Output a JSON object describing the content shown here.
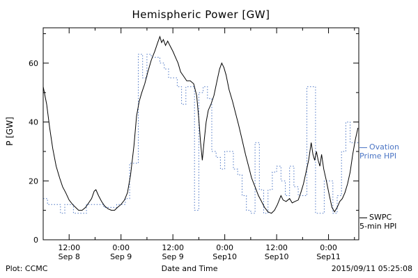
{
  "chart_data": {
    "type": "line",
    "title": "Hemispheric Power [GW]",
    "xlabel": "Date and Time",
    "ylabel": "P [GW]",
    "xlim": [
      6,
      79
    ],
    "ylim": [
      0,
      72
    ],
    "grid": false,
    "legend_position": "right-outside",
    "x_unit": "hours since Sep 8 00:00",
    "xticks": [
      {
        "x": 12,
        "time": "12:00",
        "date": "Sep 8"
      },
      {
        "x": 24,
        "time": "0:00",
        "date": "Sep 9"
      },
      {
        "x": 36,
        "time": "12:00",
        "date": "Sep 9"
      },
      {
        "x": 48,
        "time": "0:00",
        "date": "Sep10"
      },
      {
        "x": 60,
        "time": "12:00",
        "date": "Sep10"
      },
      {
        "x": 72,
        "time": "0:00",
        "date": "Sep11"
      }
    ],
    "x_minor_step": 6,
    "yticks": [
      0,
      20,
      40,
      60
    ],
    "y_minor_step": 10,
    "series": [
      {
        "name": "Ovation Prime HPI",
        "style": "step",
        "color": "#4a74c4",
        "dash": "1.5 2.5",
        "points": [
          [
            6,
            14
          ],
          [
            7,
            12
          ],
          [
            8,
            12
          ],
          [
            9,
            12
          ],
          [
            10,
            9
          ],
          [
            11,
            12
          ],
          [
            12,
            12
          ],
          [
            13,
            9
          ],
          [
            14,
            9
          ],
          [
            15,
            9
          ],
          [
            16,
            12
          ],
          [
            17,
            12
          ],
          [
            18,
            12
          ],
          [
            19,
            12
          ],
          [
            20,
            11
          ],
          [
            21,
            11
          ],
          [
            22,
            11
          ],
          [
            23,
            12
          ],
          [
            24,
            12
          ],
          [
            25,
            14
          ],
          [
            26,
            26
          ],
          [
            27,
            26
          ],
          [
            28,
            63
          ],
          [
            29,
            55
          ],
          [
            30,
            63
          ],
          [
            31,
            62
          ],
          [
            32,
            62
          ],
          [
            33,
            60
          ],
          [
            34,
            58
          ],
          [
            35,
            55
          ],
          [
            36,
            55
          ],
          [
            37,
            52
          ],
          [
            38,
            46
          ],
          [
            39,
            52
          ],
          [
            40,
            52
          ],
          [
            41,
            10
          ],
          [
            42,
            50
          ],
          [
            43,
            52
          ],
          [
            44,
            48
          ],
          [
            45,
            30
          ],
          [
            46,
            28
          ],
          [
            47,
            24
          ],
          [
            48,
            30
          ],
          [
            49,
            30
          ],
          [
            50,
            24
          ],
          [
            51,
            22
          ],
          [
            52,
            15
          ],
          [
            53,
            10
          ],
          [
            54,
            9
          ],
          [
            55,
            33
          ],
          [
            56,
            17
          ],
          [
            57,
            9
          ],
          [
            58,
            17
          ],
          [
            59,
            23
          ],
          [
            60,
            25
          ],
          [
            61,
            20
          ],
          [
            62,
            15
          ],
          [
            63,
            25
          ],
          [
            64,
            18
          ],
          [
            65,
            15
          ],
          [
            66,
            15
          ],
          [
            67,
            52
          ],
          [
            68,
            52
          ],
          [
            69,
            9
          ],
          [
            70,
            9
          ],
          [
            71,
            20
          ],
          [
            72,
            20
          ],
          [
            73,
            9
          ],
          [
            74,
            15
          ],
          [
            75,
            30
          ],
          [
            76,
            40
          ],
          [
            77,
            33
          ],
          [
            78,
            33
          ]
        ]
      },
      {
        "name": "SWPC 5-min HPI",
        "style": "line",
        "color": "#000000",
        "dash": "",
        "points": [
          [
            6,
            52
          ],
          [
            6.8,
            46
          ],
          [
            7.5,
            38
          ],
          [
            8.2,
            31
          ],
          [
            9,
            25
          ],
          [
            9.8,
            21
          ],
          [
            10.5,
            18
          ],
          [
            11.2,
            16
          ],
          [
            12,
            13.5
          ],
          [
            12.8,
            12
          ],
          [
            13.5,
            11
          ],
          [
            14.2,
            10
          ],
          [
            15,
            10
          ],
          [
            15.8,
            11
          ],
          [
            16.5,
            12.5
          ],
          [
            17.2,
            14
          ],
          [
            17.8,
            16.5
          ],
          [
            18.2,
            17
          ],
          [
            18.8,
            15
          ],
          [
            19.5,
            13
          ],
          [
            20.2,
            11.5
          ],
          [
            21,
            10.5
          ],
          [
            21.8,
            10
          ],
          [
            22.5,
            10
          ],
          [
            23.2,
            11
          ],
          [
            24,
            12
          ],
          [
            24.8,
            13.5
          ],
          [
            25.5,
            16
          ],
          [
            26.2,
            22
          ],
          [
            27,
            32
          ],
          [
            27.6,
            42
          ],
          [
            28.2,
            47
          ],
          [
            28.8,
            50
          ],
          [
            29.5,
            53
          ],
          [
            30.2,
            57
          ],
          [
            31,
            61
          ],
          [
            31.8,
            64
          ],
          [
            32.5,
            67
          ],
          [
            33,
            69
          ],
          [
            33.4,
            67
          ],
          [
            33.8,
            68
          ],
          [
            34.3,
            66
          ],
          [
            34.8,
            67.5
          ],
          [
            35.3,
            66
          ],
          [
            36,
            64
          ],
          [
            36.6,
            62
          ],
          [
            37.2,
            60
          ],
          [
            37.8,
            57
          ],
          [
            38.5,
            55.5
          ],
          [
            39.2,
            54
          ],
          [
            40,
            54
          ],
          [
            40.8,
            53
          ],
          [
            41.5,
            49
          ],
          [
            42,
            41
          ],
          [
            42.4,
            33
          ],
          [
            42.8,
            27
          ],
          [
            43.2,
            33
          ],
          [
            43.7,
            40
          ],
          [
            44.2,
            44
          ],
          [
            44.8,
            46
          ],
          [
            45.5,
            49
          ],
          [
            46.2,
            54
          ],
          [
            46.8,
            58
          ],
          [
            47.3,
            60
          ],
          [
            47.8,
            58.5
          ],
          [
            48.3,
            56
          ],
          [
            49,
            51
          ],
          [
            49.8,
            47
          ],
          [
            50.5,
            43
          ],
          [
            51.2,
            39
          ],
          [
            52,
            34
          ],
          [
            52.8,
            29
          ],
          [
            53.5,
            25
          ],
          [
            54.2,
            21
          ],
          [
            55,
            18
          ],
          [
            55.8,
            15
          ],
          [
            56.5,
            13
          ],
          [
            57.2,
            11
          ],
          [
            58,
            9.5
          ],
          [
            58.8,
            9
          ],
          [
            59.5,
            10
          ],
          [
            60.2,
            12
          ],
          [
            61,
            15
          ],
          [
            61.5,
            13.5
          ],
          [
            62.2,
            13
          ],
          [
            63,
            14
          ],
          [
            63.6,
            12.5
          ],
          [
            64.2,
            13
          ],
          [
            65,
            13.5
          ],
          [
            65.6,
            16
          ],
          [
            66.2,
            19
          ],
          [
            66.8,
            23
          ],
          [
            67.4,
            27
          ],
          [
            68,
            33
          ],
          [
            68.4,
            29
          ],
          [
            68.8,
            27
          ],
          [
            69.2,
            30
          ],
          [
            69.6,
            27
          ],
          [
            70,
            25
          ],
          [
            70.4,
            29
          ],
          [
            70.9,
            24
          ],
          [
            71.5,
            20
          ],
          [
            72.2,
            15
          ],
          [
            72.8,
            11
          ],
          [
            73.4,
            9.5
          ],
          [
            74,
            11
          ],
          [
            74.6,
            13
          ],
          [
            75.2,
            14
          ],
          [
            75.8,
            16
          ],
          [
            76.4,
            19
          ],
          [
            77,
            23
          ],
          [
            77.6,
            29
          ],
          [
            78.2,
            34
          ],
          [
            78.8,
            38
          ]
        ]
      }
    ]
  },
  "legend": {
    "ovation": {
      "line1": "Ovation",
      "line2": "Prime HPI"
    },
    "swpc": {
      "line1": "SWPC",
      "line2": "5-min HPI"
    }
  },
  "footer": {
    "credit": "Plot: CCMC",
    "timestamp": "2015/09/11 05:25:08"
  },
  "colors": {
    "ovation": "#4a74c4",
    "swpc": "#000000",
    "background": "#ffffff"
  }
}
